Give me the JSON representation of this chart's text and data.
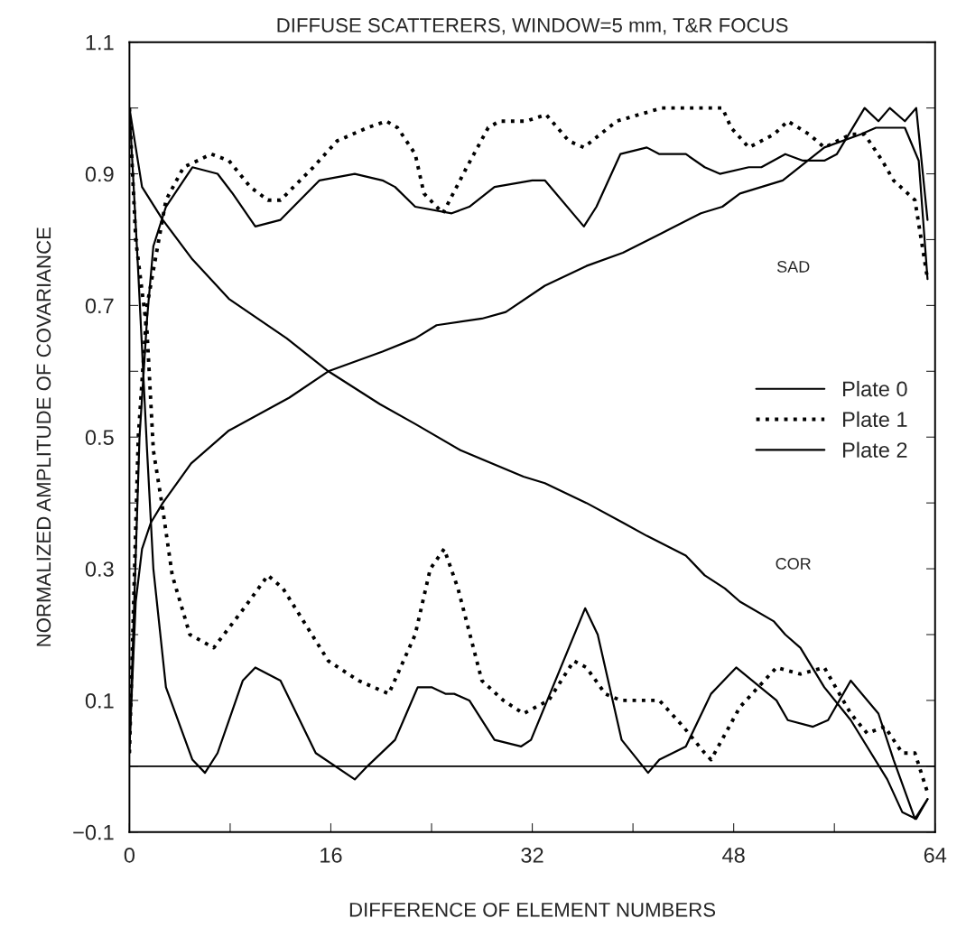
{
  "chart_data": {
    "type": "line",
    "title": "DIFFUSE SCATTERERS, WINDOW=5 mm, T&R FOCUS",
    "xlabel": "DIFFERENCE OF ELEMENT NUMBERS",
    "ylabel": "NORMALIZED AMPLITUDE OF COVARIANCE",
    "xlim": [
      0,
      64
    ],
    "xticks": [
      0,
      {
        "value": 8,
        "label": null
      },
      16,
      {
        "value": 24,
        "label": null
      },
      32,
      {
        "value": 40,
        "label": null
      },
      48,
      {
        "value": 56,
        "label": null
      },
      64
    ],
    "ylim": [
      -0.1,
      1.1
    ],
    "yticks": [
      {
        "value": -0.1,
        "label": "−0.1"
      },
      {
        "value": 0,
        "label": null
      },
      0.1,
      {
        "value": 0.2,
        "label": null
      },
      0.3,
      {
        "value": 0.4,
        "label": null
      },
      0.5,
      {
        "value": 0.6,
        "label": null
      },
      0.7,
      {
        "value": 0.8,
        "label": null
      },
      0.9,
      {
        "value": 1.0,
        "label": null
      },
      1.1
    ],
    "grid": false,
    "legend": "right",
    "ref_lines": [
      {
        "axis": "y",
        "value": 0,
        "color": "#000000",
        "line_style": "solid"
      }
    ],
    "annotations": [
      "SAD",
      "COR"
    ],
    "series": [
      {
        "name": "Plate 0",
        "color": "#000000",
        "line_style": "solid",
        "x": [
          0,
          0.5,
          1.0,
          1.7,
          2.65,
          4.9,
          7.9,
          12.7,
          15.8,
          20.1,
          22.7,
          24.4,
          28,
          29.9,
          33,
          36.3,
          39.2,
          42.3,
          45.4,
          47.1,
          48.5,
          51.9,
          55.2,
          58.1,
          59.3,
          60.5,
          61.6,
          62.7,
          63.4
        ],
        "values": [
          0.03,
          0.25,
          0.33,
          0.37,
          0.4,
          0.46,
          0.51,
          0.56,
          0.6,
          0.63,
          0.65,
          0.67,
          0.68,
          0.69,
          0.73,
          0.76,
          0.78,
          0.81,
          0.84,
          0.85,
          0.87,
          0.89,
          0.94,
          0.96,
          0.97,
          0.97,
          0.97,
          0.92,
          0.74
        ]
      },
      {
        "color": "#000000",
        "line_style": "solid",
        "x": [
          0,
          1,
          2.65,
          5,
          7.9,
          12.5,
          15.8,
          19.9,
          22.7,
          26.3,
          31.3,
          33,
          36.3,
          39.2,
          41.1,
          44.2,
          45.7,
          47.3,
          48.5,
          51.2,
          52.1,
          53.3,
          55.2,
          57.3,
          60.2,
          61.4,
          62.5,
          63.4
        ],
        "values": [
          1.0,
          0.88,
          0.83,
          0.77,
          0.71,
          0.65,
          0.6,
          0.55,
          0.52,
          0.48,
          0.44,
          0.43,
          0.4,
          0.37,
          0.35,
          0.32,
          0.29,
          0.27,
          0.25,
          0.22,
          0.2,
          0.18,
          0.12,
          0.07,
          -0.02,
          -0.07,
          -0.08,
          -0.05
        ]
      },
      {
        "name": "Plate 1",
        "color": "#000000",
        "line_style": "dotted",
        "x": [
          0,
          0.7,
          1.4,
          2.9,
          4.3,
          6.5,
          7.9,
          9.6,
          11,
          12,
          14.6,
          16.5,
          18.9,
          20.4,
          21.3,
          22.7,
          23.4,
          24.9,
          26.8,
          28.5,
          29.4,
          31.5,
          33.1,
          34.9,
          36.1,
          38.7,
          42.3,
          45.7,
          47.1,
          47.8,
          49.2,
          51.2,
          52.3,
          54,
          55.2,
          57.3,
          58.4,
          59.8,
          60.7,
          62.4,
          63.4
        ],
        "values": [
          0.02,
          0.5,
          0.7,
          0.86,
          0.91,
          0.93,
          0.92,
          0.88,
          0.86,
          0.86,
          0.91,
          0.95,
          0.97,
          0.98,
          0.97,
          0.93,
          0.87,
          0.84,
          0.91,
          0.97,
          0.98,
          0.98,
          0.99,
          0.95,
          0.94,
          0.98,
          1.0,
          1.0,
          1.0,
          0.97,
          0.94,
          0.96,
          0.98,
          0.96,
          0.94,
          0.96,
          0.96,
          0.92,
          0.89,
          0.86,
          0.74
        ]
      },
      {
        "color": "#000000",
        "line_style": "dotted",
        "x": [
          0,
          0.5,
          1.4,
          1.9,
          2.65,
          3.4,
          4.8,
          6.7,
          9.1,
          11,
          12.2,
          15.8,
          18.2,
          20.6,
          22.7,
          23.9,
          25,
          26.1,
          28,
          29.7,
          31.3,
          33.3,
          35.3,
          36.3,
          37.8,
          39,
          40.1,
          42.1,
          44,
          45.7,
          46.2,
          48.5,
          51.4,
          53.3,
          55.2,
          57.3,
          58.6,
          60,
          61.4,
          62.4,
          63.4
        ],
        "values": [
          1.0,
          0.8,
          0.66,
          0.48,
          0.39,
          0.29,
          0.2,
          0.18,
          0.24,
          0.29,
          0.27,
          0.16,
          0.13,
          0.11,
          0.2,
          0.3,
          0.33,
          0.27,
          0.13,
          0.1,
          0.08,
          0.1,
          0.16,
          0.15,
          0.11,
          0.1,
          0.1,
          0.1,
          0.06,
          0.02,
          0.01,
          0.09,
          0.15,
          0.14,
          0.15,
          0.08,
          0.05,
          0.06,
          0.02,
          0.02,
          -0.04
        ]
      },
      {
        "name": "Plate 2",
        "color": "#000000",
        "line_style": "solid",
        "x": [
          0,
          0.8,
          1.4,
          1.9,
          2.9,
          5,
          7,
          8.2,
          10,
          12,
          15.1,
          17.9,
          20.1,
          21.1,
          22.7,
          25.6,
          27,
          29,
          32,
          33,
          36.1,
          37.1,
          39,
          41.1,
          42.1,
          44.2,
          45.7,
          46.9,
          49.2,
          50.2,
          52.1,
          53.5,
          55.2,
          56.2,
          58.4,
          59.5,
          60.4,
          61.6,
          62.5,
          63.4
        ],
        "values": [
          0.02,
          0.5,
          0.68,
          0.79,
          0.85,
          0.91,
          0.9,
          0.87,
          0.82,
          0.83,
          0.89,
          0.9,
          0.89,
          0.88,
          0.85,
          0.84,
          0.85,
          0.88,
          0.89,
          0.89,
          0.82,
          0.85,
          0.93,
          0.94,
          0.93,
          0.93,
          0.91,
          0.9,
          0.91,
          0.91,
          0.93,
          0.92,
          0.92,
          0.93,
          1.0,
          0.98,
          1.0,
          0.98,
          1.0,
          0.83
        ]
      },
      {
        "color": "#000000",
        "line_style": "solid",
        "x": [
          0,
          0.7,
          1.4,
          1.9,
          2.9,
          5,
          6,
          7,
          9,
          10,
          12,
          14.8,
          17.9,
          18.9,
          21.1,
          22,
          22.9,
          24,
          25.1,
          25.8,
          27,
          29,
          31.1,
          31.9,
          36.2,
          37.2,
          39.1,
          41.2,
          42.1,
          44.2,
          45.7,
          46.2,
          48.2,
          51.4,
          52.3,
          54.3,
          55.5,
          57.3,
          59.5,
          60.7,
          62.4,
          63.4
        ],
        "values": [
          1.0,
          0.75,
          0.48,
          0.3,
          0.12,
          0.01,
          -0.01,
          0.02,
          0.13,
          0.15,
          0.13,
          0.02,
          -0.02,
          0.0,
          0.04,
          0.08,
          0.12,
          0.12,
          0.11,
          0.11,
          0.1,
          0.04,
          0.03,
          0.04,
          0.24,
          0.2,
          0.04,
          -0.01,
          0.01,
          0.03,
          0.09,
          0.11,
          0.15,
          0.1,
          0.07,
          0.06,
          0.07,
          0.13,
          0.08,
          0.01,
          -0.08,
          -0.05
        ]
      }
    ]
  }
}
